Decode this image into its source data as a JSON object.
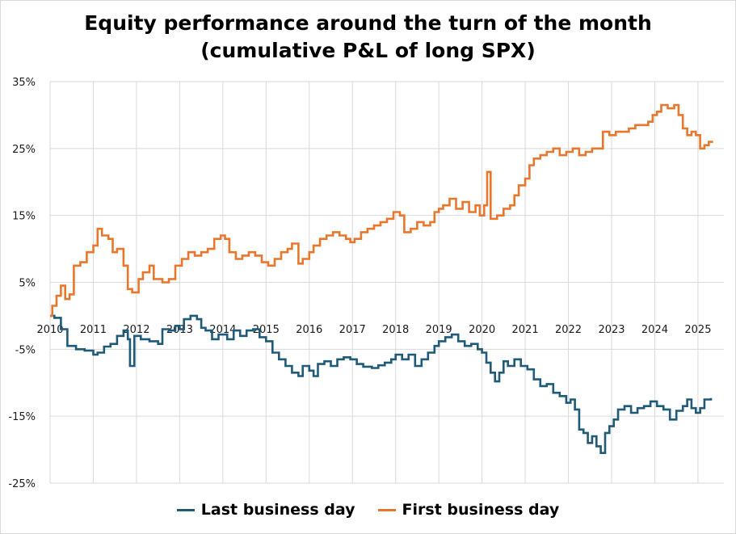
{
  "chart_data": {
    "type": "line",
    "title_line1": "Equity performance around the turn of the month",
    "title_line2": "(cumulative P&L of long SPX)",
    "ylim": [
      -25,
      35
    ],
    "xlim": [
      2010,
      2025.6
    ],
    "grid": true,
    "legend_position": "bottom",
    "y_ticks": [
      {
        "value": 35,
        "label": "35%"
      },
      {
        "value": 25,
        "label": "25%"
      },
      {
        "value": 15,
        "label": "15%"
      },
      {
        "value": 5,
        "label": "5%"
      },
      {
        "value": -5,
        "label": "-5%"
      },
      {
        "value": -15,
        "label": "-15%"
      },
      {
        "value": -25,
        "label": "-25%"
      }
    ],
    "x_ticks": [
      "2010",
      "2011",
      "2012",
      "2013",
      "2014",
      "2015",
      "2016",
      "2017",
      "2018",
      "2019",
      "2020",
      "2021",
      "2022",
      "2023",
      "2024",
      "2025"
    ],
    "series": [
      {
        "name": "Last business day",
        "color": "#1f5a78",
        "points": [
          [
            2010.0,
            0.0
          ],
          [
            2010.1,
            -0.3
          ],
          [
            2010.25,
            -2.0
          ],
          [
            2010.4,
            -4.5
          ],
          [
            2010.6,
            -5.0
          ],
          [
            2010.8,
            -5.2
          ],
          [
            2011.0,
            -5.8
          ],
          [
            2011.1,
            -5.5
          ],
          [
            2011.25,
            -4.6
          ],
          [
            2011.4,
            -4.2
          ],
          [
            2011.55,
            -3.0
          ],
          [
            2011.7,
            -2.2
          ],
          [
            2011.8,
            -3.5
          ],
          [
            2011.85,
            -7.5
          ],
          [
            2011.95,
            -3.0
          ],
          [
            2012.1,
            -3.5
          ],
          [
            2012.3,
            -3.8
          ],
          [
            2012.5,
            -4.2
          ],
          [
            2012.6,
            -2.0
          ],
          [
            2012.75,
            -2.2
          ],
          [
            2012.9,
            -1.5
          ],
          [
            2013.0,
            -2.0
          ],
          [
            2013.1,
            -0.5
          ],
          [
            2013.25,
            0.0
          ],
          [
            2013.4,
            -0.5
          ],
          [
            2013.5,
            -1.8
          ],
          [
            2013.6,
            -2.2
          ],
          [
            2013.75,
            -3.5
          ],
          [
            2013.9,
            -2.8
          ],
          [
            2014.1,
            -3.5
          ],
          [
            2014.25,
            -2.2
          ],
          [
            2014.4,
            -3.0
          ],
          [
            2014.55,
            -2.2
          ],
          [
            2014.7,
            -2.0
          ],
          [
            2014.85,
            -3.2
          ],
          [
            2015.0,
            -3.8
          ],
          [
            2015.15,
            -5.5
          ],
          [
            2015.3,
            -6.5
          ],
          [
            2015.45,
            -7.5
          ],
          [
            2015.6,
            -8.5
          ],
          [
            2015.75,
            -9.0
          ],
          [
            2015.85,
            -7.5
          ],
          [
            2016.0,
            -8.2
          ],
          [
            2016.1,
            -9.0
          ],
          [
            2016.2,
            -7.2
          ],
          [
            2016.35,
            -6.8
          ],
          [
            2016.5,
            -7.5
          ],
          [
            2016.65,
            -6.5
          ],
          [
            2016.8,
            -6.2
          ],
          [
            2016.95,
            -6.5
          ],
          [
            2017.1,
            -7.2
          ],
          [
            2017.25,
            -7.6
          ],
          [
            2017.45,
            -7.8
          ],
          [
            2017.6,
            -7.4
          ],
          [
            2017.75,
            -7.0
          ],
          [
            2017.9,
            -6.5
          ],
          [
            2018.0,
            -5.8
          ],
          [
            2018.15,
            -6.5
          ],
          [
            2018.3,
            -5.8
          ],
          [
            2018.45,
            -7.5
          ],
          [
            2018.6,
            -6.5
          ],
          [
            2018.75,
            -5.5
          ],
          [
            2018.9,
            -4.5
          ],
          [
            2019.0,
            -3.8
          ],
          [
            2019.15,
            -3.2
          ],
          [
            2019.3,
            -2.8
          ],
          [
            2019.45,
            -3.8
          ],
          [
            2019.6,
            -4.5
          ],
          [
            2019.75,
            -4.2
          ],
          [
            2019.9,
            -5.0
          ],
          [
            2020.0,
            -5.5
          ],
          [
            2020.1,
            -7.0
          ],
          [
            2020.2,
            -8.5
          ],
          [
            2020.3,
            -9.8
          ],
          [
            2020.4,
            -8.5
          ],
          [
            2020.5,
            -6.8
          ],
          [
            2020.6,
            -7.5
          ],
          [
            2020.75,
            -6.5
          ],
          [
            2020.9,
            -7.5
          ],
          [
            2021.05,
            -8.0
          ],
          [
            2021.2,
            -9.5
          ],
          [
            2021.35,
            -10.5
          ],
          [
            2021.5,
            -10.2
          ],
          [
            2021.65,
            -11.5
          ],
          [
            2021.8,
            -12.0
          ],
          [
            2021.95,
            -13.0
          ],
          [
            2022.05,
            -12.5
          ],
          [
            2022.15,
            -14.0
          ],
          [
            2022.25,
            -17.0
          ],
          [
            2022.35,
            -17.5
          ],
          [
            2022.45,
            -19.0
          ],
          [
            2022.55,
            -18.0
          ],
          [
            2022.65,
            -19.5
          ],
          [
            2022.75,
            -20.5
          ],
          [
            2022.85,
            -17.5
          ],
          [
            2022.95,
            -16.5
          ],
          [
            2023.05,
            -15.5
          ],
          [
            2023.15,
            -14.0
          ],
          [
            2023.3,
            -13.5
          ],
          [
            2023.45,
            -14.5
          ],
          [
            2023.6,
            -13.8
          ],
          [
            2023.75,
            -13.5
          ],
          [
            2023.9,
            -12.8
          ],
          [
            2024.05,
            -13.5
          ],
          [
            2024.2,
            -14.0
          ],
          [
            2024.35,
            -15.5
          ],
          [
            2024.5,
            -14.2
          ],
          [
            2024.65,
            -13.5
          ],
          [
            2024.75,
            -12.5
          ],
          [
            2024.85,
            -13.8
          ],
          [
            2024.95,
            -14.5
          ],
          [
            2025.05,
            -13.8
          ],
          [
            2025.15,
            -12.5
          ],
          [
            2025.3,
            -12.3
          ]
        ]
      },
      {
        "name": "First business day",
        "color": "#e8772e",
        "points": [
          [
            2010.0,
            0.0
          ],
          [
            2010.05,
            1.5
          ],
          [
            2010.15,
            3.0
          ],
          [
            2010.25,
            4.5
          ],
          [
            2010.35,
            2.5
          ],
          [
            2010.45,
            3.2
          ],
          [
            2010.55,
            7.5
          ],
          [
            2010.7,
            8.0
          ],
          [
            2010.85,
            9.5
          ],
          [
            2011.0,
            10.5
          ],
          [
            2011.1,
            13.0
          ],
          [
            2011.2,
            12.0
          ],
          [
            2011.35,
            11.5
          ],
          [
            2011.45,
            9.5
          ],
          [
            2011.55,
            10.0
          ],
          [
            2011.7,
            7.5
          ],
          [
            2011.8,
            4.0
          ],
          [
            2011.9,
            3.5
          ],
          [
            2012.05,
            5.5
          ],
          [
            2012.15,
            6.5
          ],
          [
            2012.3,
            7.5
          ],
          [
            2012.4,
            5.5
          ],
          [
            2012.6,
            5.0
          ],
          [
            2012.75,
            5.5
          ],
          [
            2012.9,
            7.5
          ],
          [
            2013.05,
            8.5
          ],
          [
            2013.2,
            9.5
          ],
          [
            2013.35,
            9.0
          ],
          [
            2013.5,
            9.5
          ],
          [
            2013.65,
            10.0
          ],
          [
            2013.8,
            11.5
          ],
          [
            2013.95,
            12.0
          ],
          [
            2014.05,
            11.5
          ],
          [
            2014.15,
            9.5
          ],
          [
            2014.3,
            8.5
          ],
          [
            2014.45,
            9.0
          ],
          [
            2014.6,
            9.5
          ],
          [
            2014.75,
            9.0
          ],
          [
            2014.9,
            8.0
          ],
          [
            2015.05,
            7.5
          ],
          [
            2015.2,
            8.5
          ],
          [
            2015.35,
            9.5
          ],
          [
            2015.5,
            10.0
          ],
          [
            2015.6,
            10.8
          ],
          [
            2015.75,
            7.8
          ],
          [
            2015.85,
            8.5
          ],
          [
            2016.0,
            9.5
          ],
          [
            2016.1,
            10.5
          ],
          [
            2016.25,
            11.5
          ],
          [
            2016.4,
            12.0
          ],
          [
            2016.55,
            12.5
          ],
          [
            2016.7,
            12.0
          ],
          [
            2016.85,
            11.5
          ],
          [
            2016.95,
            11.0
          ],
          [
            2017.05,
            11.5
          ],
          [
            2017.2,
            12.5
          ],
          [
            2017.35,
            13.0
          ],
          [
            2017.5,
            13.5
          ],
          [
            2017.65,
            14.0
          ],
          [
            2017.8,
            14.5
          ],
          [
            2017.95,
            15.5
          ],
          [
            2018.1,
            15.0
          ],
          [
            2018.2,
            12.5
          ],
          [
            2018.35,
            13.0
          ],
          [
            2018.5,
            14.0
          ],
          [
            2018.65,
            13.5
          ],
          [
            2018.8,
            14.0
          ],
          [
            2018.9,
            15.5
          ],
          [
            2019.0,
            16.0
          ],
          [
            2019.1,
            16.5
          ],
          [
            2019.25,
            17.5
          ],
          [
            2019.4,
            16.0
          ],
          [
            2019.55,
            17.0
          ],
          [
            2019.7,
            15.5
          ],
          [
            2019.85,
            16.5
          ],
          [
            2019.95,
            15.0
          ],
          [
            2020.05,
            16.5
          ],
          [
            2020.12,
            21.5
          ],
          [
            2020.2,
            14.5
          ],
          [
            2020.35,
            15.0
          ],
          [
            2020.5,
            16.0
          ],
          [
            2020.65,
            16.5
          ],
          [
            2020.75,
            18.0
          ],
          [
            2020.85,
            19.5
          ],
          [
            2021.0,
            20.5
          ],
          [
            2021.1,
            22.5
          ],
          [
            2021.2,
            23.5
          ],
          [
            2021.35,
            24.0
          ],
          [
            2021.5,
            24.5
          ],
          [
            2021.65,
            25.0
          ],
          [
            2021.8,
            24.0
          ],
          [
            2021.95,
            24.5
          ],
          [
            2022.1,
            25.0
          ],
          [
            2022.25,
            24.0
          ],
          [
            2022.4,
            24.5
          ],
          [
            2022.55,
            25.0
          ],
          [
            2022.7,
            25.0
          ],
          [
            2022.8,
            27.5
          ],
          [
            2022.95,
            27.0
          ],
          [
            2023.1,
            27.5
          ],
          [
            2023.25,
            27.5
          ],
          [
            2023.4,
            28.0
          ],
          [
            2023.55,
            28.5
          ],
          [
            2023.7,
            28.5
          ],
          [
            2023.85,
            29.0
          ],
          [
            2023.95,
            30.0
          ],
          [
            2024.05,
            30.5
          ],
          [
            2024.15,
            31.5
          ],
          [
            2024.3,
            31.0
          ],
          [
            2024.45,
            31.5
          ],
          [
            2024.55,
            30.0
          ],
          [
            2024.65,
            28.0
          ],
          [
            2024.75,
            27.0
          ],
          [
            2024.85,
            27.5
          ],
          [
            2024.95,
            27.0
          ],
          [
            2025.05,
            25.0
          ],
          [
            2025.15,
            25.5
          ],
          [
            2025.25,
            26.0
          ],
          [
            2025.35,
            26.0
          ]
        ]
      }
    ]
  }
}
